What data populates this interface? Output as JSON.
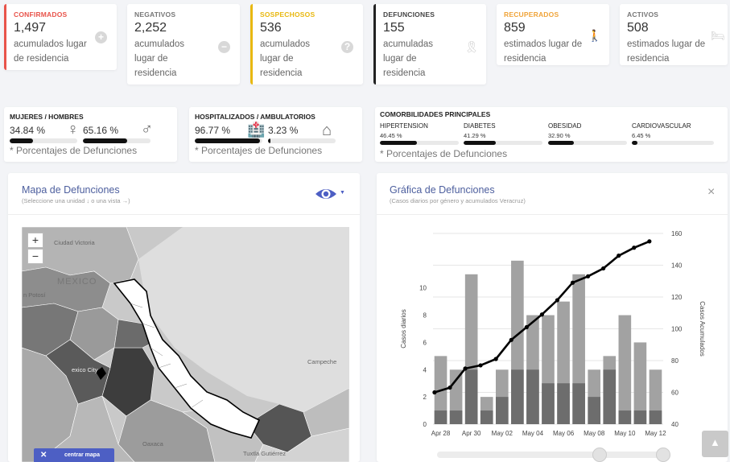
{
  "stats": [
    {
      "label": "CONFIRMADOS",
      "value": "1,497",
      "sub": "acumulados lugar de residencia",
      "color": "#e8534a",
      "icon": "plus-circle-icon"
    },
    {
      "label": "NEGATIVOS",
      "value": "2,252",
      "sub": "acumulados lugar de residencia",
      "color": "#777777",
      "icon": "minus-circle-icon"
    },
    {
      "label": "SOSPECHOSOS",
      "value": "536",
      "sub": "acumulados lugar de residencia",
      "color": "#e8b80f",
      "icon": "question-circle-icon"
    },
    {
      "label": "DEFUNCIONES",
      "value": "155",
      "sub": "acumuladas lugar de residencia",
      "color": "#222222",
      "icon": "ribbon-icon"
    },
    {
      "label": "RECUPERADOS",
      "value": "859",
      "sub": "estimados lugar de residencia",
      "color": "#f0a43a",
      "icon": "walking-icon"
    },
    {
      "label": "ACTIVOS",
      "value": "508",
      "sub": "estimados lugar de residencia",
      "color": "#777777",
      "icon": "bed-icon"
    }
  ],
  "gender": {
    "title": "MUJERES / HOMBRES",
    "women_pct": "34.84 %",
    "men_pct": "65.16 %",
    "women_value": 34.84,
    "men_value": 65.16,
    "note": "* Porcentajes de Defunciones"
  },
  "hospital": {
    "title": "HOSPITALIZADOS / AMBULATORIOS",
    "hosp_pct": "96.77 %",
    "amb_pct": "3.23 %",
    "hosp_value": 96.77,
    "amb_value": 3.23,
    "note": "* Porcentajes de Defunciones"
  },
  "comorbidities": {
    "title": "COMORBILIDADES PRINCIPALES",
    "items": [
      {
        "label": "HIPERTENSION",
        "pct": "46.45 %",
        "value": 46.45
      },
      {
        "label": "DIABETES",
        "pct": "41.29 %",
        "value": 41.29
      },
      {
        "label": "OBESIDAD",
        "pct": "32.90 %",
        "value": 32.9
      },
      {
        "label": "CARDIOVASCULAR",
        "pct": "6.45 %",
        "value": 6.45
      }
    ],
    "note": "* Porcentajes de Defunciones"
  },
  "map_panel": {
    "title": "Mapa de Defunciones",
    "subtitle": "(Seleccione una unidad ↓ o una vista →)",
    "zoom_in": "+",
    "zoom_out": "−",
    "labels": {
      "mexico": "MEXICO",
      "ciudad_victoria": "Ciudad Victoria",
      "potosi": "n Potosí",
      "monterrey_region": "exico City",
      "campeche": "Campeche",
      "oaxaca": "Oaxaca",
      "tuxtla": "Tuxtla Gutiérrez"
    },
    "center_button": "centrar mapa"
  },
  "chart_panel": {
    "title": "Gráfica de Defunciones",
    "subtitle": "(Casos diarios por género y acumulados Veracruz)",
    "close": "×"
  },
  "chart_data": {
    "type": "bar",
    "x_tick_labels": [
      "Apr 28",
      "Apr 30",
      "May 02",
      "May 04",
      "May 06",
      "May 08",
      "May 10",
      "May 12"
    ],
    "categories": [
      "Apr 28",
      "Apr 29",
      "Apr 30",
      "May 01",
      "May 02",
      "May 03",
      "May 04",
      "May 05",
      "May 06",
      "May 07",
      "May 08",
      "May 09",
      "May 10",
      "May 11",
      "May 12"
    ],
    "series": [
      {
        "values": [
          5,
          4,
          11,
          2,
          4,
          12,
          8,
          8,
          9,
          11,
          4,
          5,
          8,
          6,
          4
        ]
      },
      {
        "values": [
          1,
          1,
          4,
          1,
          2,
          4,
          4,
          3,
          3,
          3,
          2,
          4,
          1,
          1,
          1
        ]
      },
      {
        "values": [
          60,
          63,
          75,
          77,
          81,
          93,
          101,
          109,
          118,
          129,
          133,
          138,
          146,
          151,
          155
        ]
      }
    ],
    "y_left_label": "Casos diarios",
    "y_right_label": "Casos Acumulados",
    "y_left_ticks": [
      0,
      2,
      4,
      6,
      8,
      10
    ],
    "y_left_range": [
      0,
      14
    ],
    "y_right_ticks": [
      40,
      60,
      80,
      100,
      120,
      140,
      160
    ],
    "y_right_range": [
      40,
      160
    ]
  }
}
